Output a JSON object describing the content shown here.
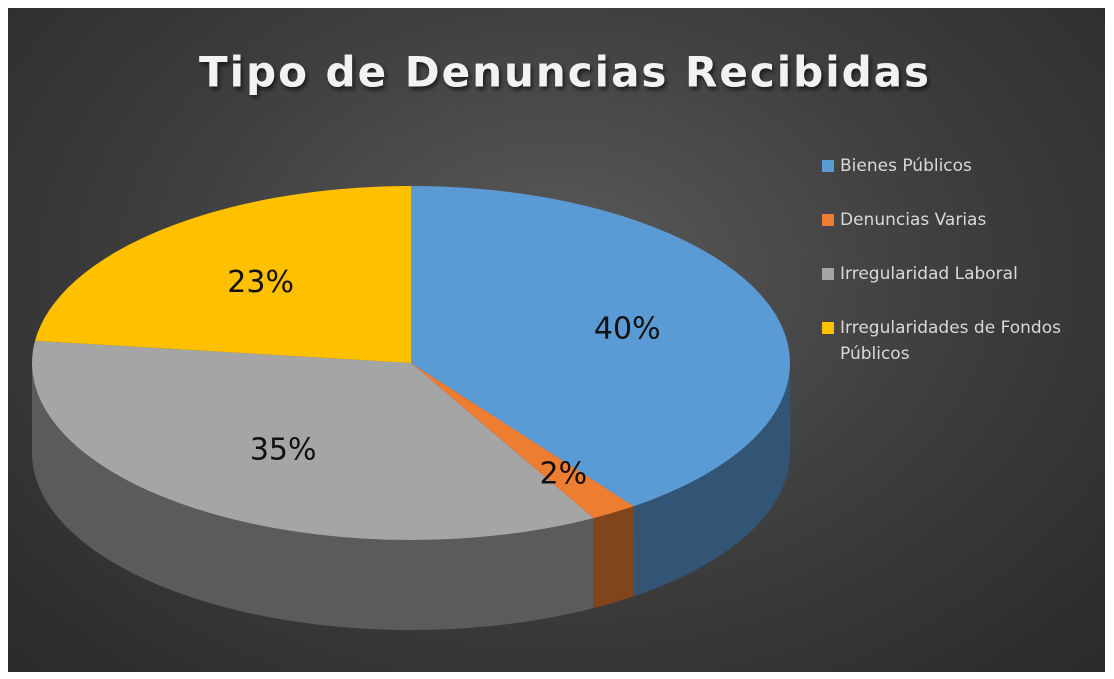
{
  "chart_data": {
    "type": "pie",
    "title": "Tipo de Denuncias Recibidas",
    "categories": [
      "Bienes Públicos",
      "Denuncias Varias",
      "Irregularidad Laboral",
      "Irregularidades de Fondos Públicos"
    ],
    "values": [
      40,
      2,
      35,
      23
    ],
    "value_labels": [
      "40%",
      "2%",
      "35%",
      "23%"
    ],
    "colors": [
      "#5b9bd5",
      "#ed7d31",
      "#a5a5a5",
      "#ffc000"
    ],
    "legend": "right"
  }
}
